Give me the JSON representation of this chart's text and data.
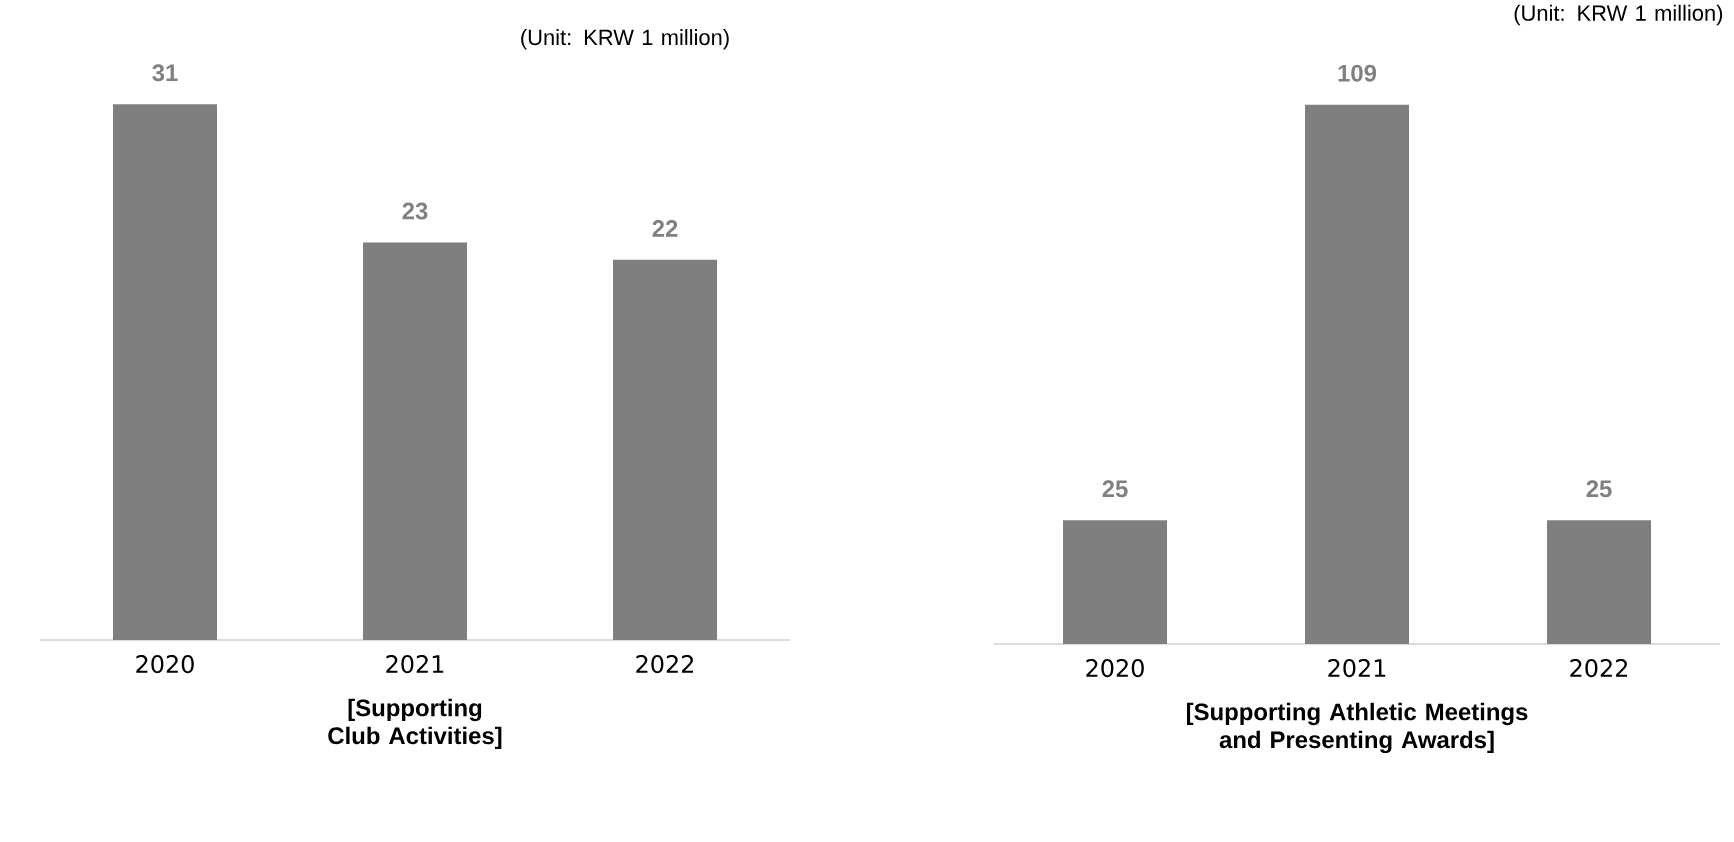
{
  "chart_data": [
    {
      "type": "bar",
      "categories": [
        "2020",
        "2021",
        "2022"
      ],
      "values": [
        31,
        23,
        22
      ],
      "color": "#7f7f7f",
      "data_labels": true,
      "xlabel": "[Supporting Club Activities]",
      "annotations": [
        "(Unit: KRW 1 million)"
      ]
    },
    {
      "type": "bar",
      "categories": [
        "2020",
        "2021",
        "2022"
      ],
      "values": [
        25,
        109,
        25
      ],
      "color": "#7f7f7f",
      "data_labels": true,
      "xlabel": "[Supporting Athletic Meetings and Presenting Awards]",
      "annotations": [
        "(Unit: KRW 1 million)"
      ]
    }
  ]
}
